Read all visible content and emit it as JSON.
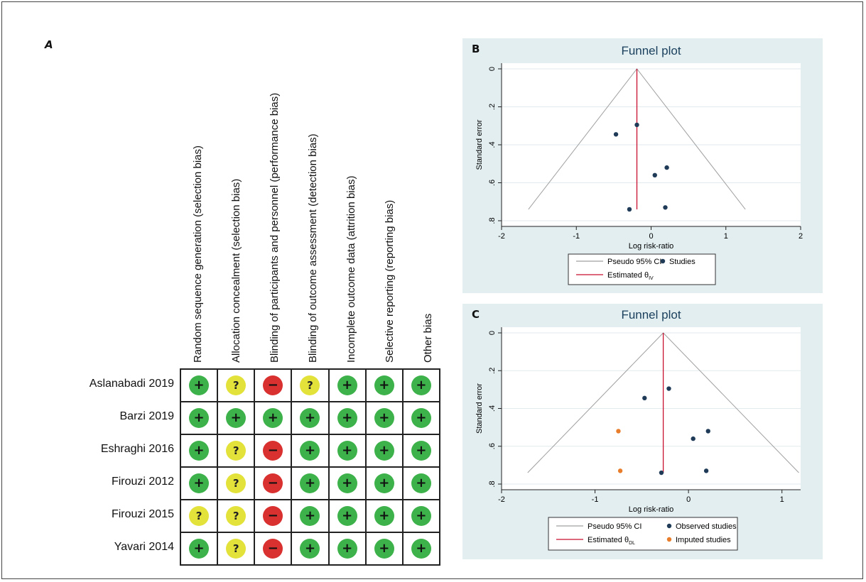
{
  "panels": {
    "a": "A",
    "b": "B",
    "c": "C"
  },
  "rob": {
    "columns": [
      "Random sequence generation (selection bias)",
      "Allocation concealment (selection bias)",
      "Blinding of participants and personnel (performance bias)",
      "Blinding of outcome assessment (detection bias)",
      "Incomplete outcome data (attrition bias)",
      "Selective reporting (reporting bias)",
      "Other bias"
    ],
    "rows": [
      {
        "study": "Aslanabadi 2019",
        "ratings": [
          "+",
          "?",
          "−",
          "?",
          "+",
          "+",
          "+"
        ]
      },
      {
        "study": "Barzi 2019",
        "ratings": [
          "+",
          "+",
          "+",
          "+",
          "+",
          "+",
          "+"
        ]
      },
      {
        "study": "Eshraghi 2016",
        "ratings": [
          "+",
          "?",
          "−",
          "+",
          "+",
          "+",
          "+"
        ]
      },
      {
        "study": "Firouzi 2012",
        "ratings": [
          "+",
          "?",
          "−",
          "+",
          "+",
          "+",
          "+"
        ]
      },
      {
        "study": "Firouzi 2015",
        "ratings": [
          "?",
          "?",
          "−",
          "+",
          "+",
          "+",
          "+"
        ]
      },
      {
        "study": "Yavari 2014",
        "ratings": [
          "+",
          "?",
          "−",
          "+",
          "+",
          "+",
          "+"
        ]
      }
    ],
    "colors": {
      "low": "#3db24a",
      "unclear": "#e3e23a",
      "high": "#d9312f"
    }
  },
  "chart_data": [
    {
      "type": "scatter",
      "title": "Funnel plot",
      "xlabel": "Log risk-ratio",
      "ylabel": "Standard error",
      "xlim": [
        -2,
        2
      ],
      "ylim": [
        0.8,
        0
      ],
      "xticks": [
        -2,
        -1,
        0,
        1,
        2
      ],
      "yticks": [
        0,
        0.2,
        0.4,
        0.6,
        0.8
      ],
      "ytick_labels": [
        "0",
        ".2",
        ".4",
        ".6",
        ".8"
      ],
      "estimate": -0.19,
      "ci_extent": 0.74,
      "series": [
        {
          "name": "Studies",
          "color": "#1f3b57",
          "points": [
            [
              -0.19,
              0.295
            ],
            [
              -0.47,
              0.345
            ],
            [
              0.21,
              0.52
            ],
            [
              0.05,
              0.56
            ],
            [
              -0.29,
              0.74
            ],
            [
              0.19,
              0.73
            ]
          ]
        }
      ],
      "legend": {
        "ci": "Pseudo 95% CI",
        "estimate": "Estimated θ",
        "estimate_sub": "IV",
        "studies": "Studies"
      },
      "colors": {
        "ci": "#a0a0a0",
        "estimate": "#c8102e"
      }
    },
    {
      "type": "scatter",
      "title": "Funnel plot",
      "xlabel": "Log risk-ratio",
      "ylabel": "Standard error",
      "xlim": [
        -2,
        1.2
      ],
      "ylim": [
        0.8,
        0
      ],
      "xticks": [
        -2,
        -1,
        0,
        1
      ],
      "yticks": [
        0,
        0.2,
        0.4,
        0.6,
        0.8
      ],
      "ytick_labels": [
        "0",
        ".2",
        ".4",
        ".6",
        ".8"
      ],
      "estimate": -0.27,
      "ci_extent": 0.74,
      "series": [
        {
          "name": "Observed studies",
          "color": "#1f3b57",
          "points": [
            [
              -0.21,
              0.295
            ],
            [
              -0.47,
              0.345
            ],
            [
              0.21,
              0.52
            ],
            [
              0.05,
              0.56
            ],
            [
              -0.29,
              0.74
            ],
            [
              0.19,
              0.73
            ]
          ]
        },
        {
          "name": "Imputed studies",
          "color": "#e87d2b",
          "points": [
            [
              -0.75,
              0.52
            ],
            [
              -0.73,
              0.73
            ]
          ]
        }
      ],
      "legend": {
        "ci": "Pseudo 95% CI",
        "estimate": "Estimated θ",
        "estimate_sub": "DL",
        "observed": "Observed studies",
        "imputed": "Imputed studies"
      },
      "colors": {
        "ci": "#a0a0a0",
        "estimate": "#c8102e"
      }
    }
  ]
}
